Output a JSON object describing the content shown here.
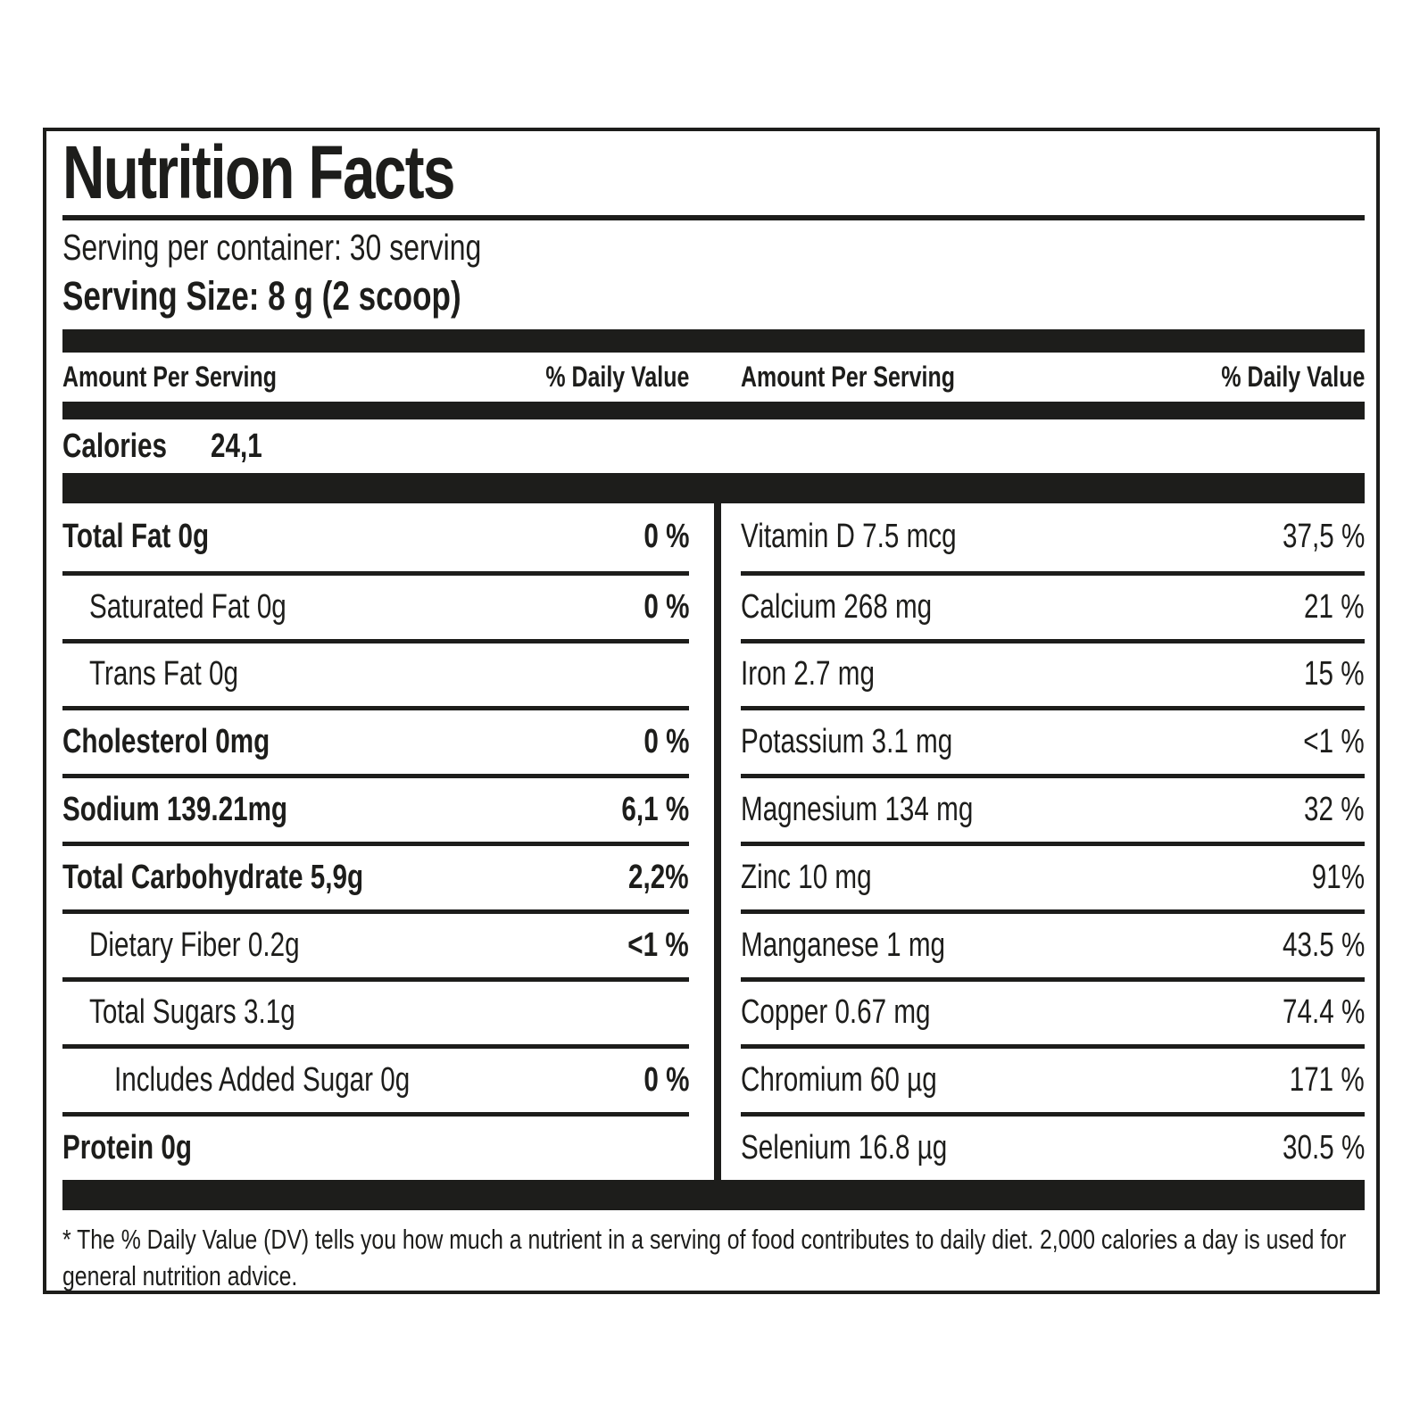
{
  "nutrition_label": {
    "title": "Nutrition Facts",
    "serving_per_container": "Serving per container: 30 serving",
    "serving_size": "Serving Size: 8 g (2 scoop)",
    "header": {
      "amount": "Amount Per Serving",
      "daily_value": "% Daily Value"
    },
    "calories_label": "Calories",
    "calories_value": "24,1",
    "left_rows": [
      {
        "name": "Total Fat 0g",
        "dv": "0 %",
        "bold": true,
        "indent": 0
      },
      {
        "name": "Saturated Fat 0g",
        "dv": "0 %",
        "bold": false,
        "indent": 1
      },
      {
        "name": "Trans Fat 0g",
        "dv": "",
        "bold": false,
        "indent": 1
      },
      {
        "name": "Cholesterol 0mg",
        "dv": "0 %",
        "bold": true,
        "indent": 0
      },
      {
        "name": "Sodium 139.21mg",
        "dv": "6,1 %",
        "bold": true,
        "indent": 0
      },
      {
        "name": "Total Carbohydrate 5,9g",
        "dv": "2,2%",
        "bold": true,
        "indent": 0
      },
      {
        "name": "Dietary Fiber 0.2g",
        "dv": "<1 %",
        "bold": false,
        "indent": 1
      },
      {
        "name": "Total Sugars 3.1g",
        "dv": "",
        "bold": false,
        "indent": 1
      },
      {
        "name": "Includes Added Sugar 0g",
        "dv": "0 %",
        "bold": false,
        "indent": 2
      },
      {
        "name": "Protein 0g",
        "dv": "",
        "bold": true,
        "indent": 0
      }
    ],
    "right_rows": [
      {
        "name": "Vitamin D  7.5 mcg",
        "dv": "37,5 %"
      },
      {
        "name": "Calcium  268 mg",
        "dv": "21 %"
      },
      {
        "name": "Iron  2.7 mg",
        "dv": "15 %"
      },
      {
        "name": "Potassium  3.1 mg",
        "dv": "<1 %"
      },
      {
        "name": "Magnesium 134 mg",
        "dv": "32 %"
      },
      {
        "name": "Zinc 10 mg",
        "dv": "91%"
      },
      {
        "name": "Manganese 1 mg",
        "dv": "43.5 %"
      },
      {
        "name": "Copper 0.67 mg",
        "dv": "74.4 %"
      },
      {
        "name": "Chromium 60 µg",
        "dv": "171 %"
      },
      {
        "name": "Selenium 16.8 µg",
        "dv": "30.5 %"
      }
    ],
    "footnote": "* The % Daily Value (DV) tells you how much a nutrient in a serving of food contributes to daily diet. 2,000 calories a day is used for general nutrition advice.",
    "ink_color": "#1d1d1b"
  }
}
